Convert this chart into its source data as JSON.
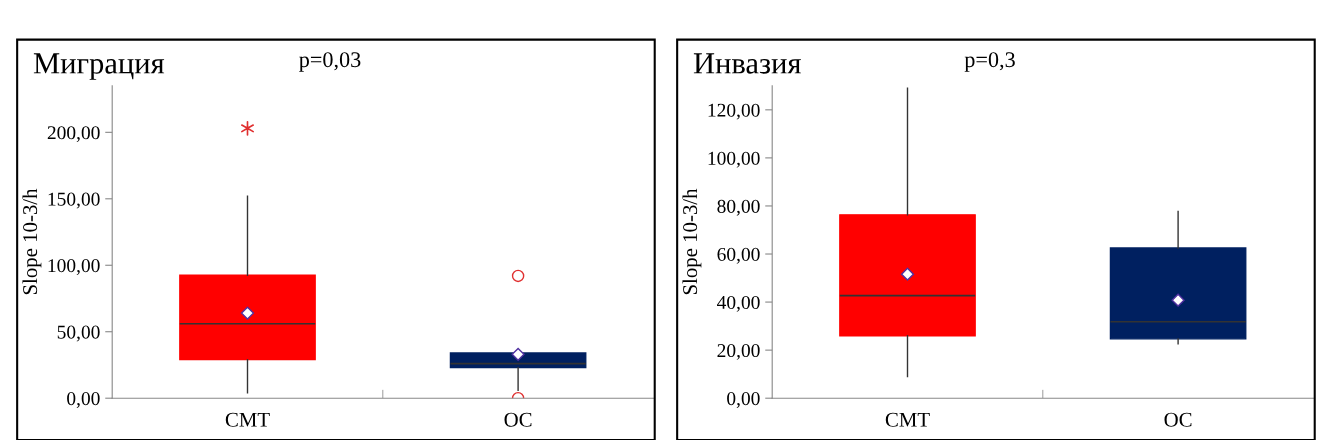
{
  "chart_data": [
    {
      "type": "box",
      "title": "Миграция",
      "subtitle": "p=0,03",
      "ylabel": "Slope 10-3/h",
      "categories": [
        "CMT",
        "OC"
      ],
      "ylim": [
        0,
        235
      ],
      "yticks": [
        {
          "value": 0,
          "label": "0,00"
        },
        {
          "value": 50,
          "label": "50,00"
        },
        {
          "value": 100,
          "label": "100,00"
        },
        {
          "value": 150,
          "label": "150,00"
        },
        {
          "value": 200,
          "label": "200,00"
        }
      ],
      "colors": [
        "#ff0000",
        "#002060"
      ],
      "boxes": [
        {
          "low": 4,
          "q1": 29,
          "median": 56,
          "q3": 92.5,
          "high": 152,
          "mean": 64
        },
        {
          "low": 6,
          "q1": 23,
          "median": 26,
          "q3": 34,
          "high": 35,
          "mean": 33,
          "outliers": [
            92,
            0
          ]
        }
      ],
      "series": [
        {
          "type": "scatter",
          "x": [
            "CMT"
          ],
          "values": [
            203
          ],
          "color": "#e03030",
          "marker": "cross"
        }
      ],
      "grid": false,
      "legend": false
    },
    {
      "type": "box",
      "title": "Инвазия",
      "subtitle": "p=0,3",
      "ylabel": "Slope 10-3/h",
      "categories": [
        "CMT",
        "OC"
      ],
      "ylim": [
        0,
        130
      ],
      "yticks": [
        {
          "value": 0,
          "label": "0,00"
        },
        {
          "value": 20,
          "label": "20,00"
        },
        {
          "value": 40,
          "label": "40,00"
        },
        {
          "value": 60,
          "label": "60,00"
        },
        {
          "value": 80,
          "label": "80,00"
        },
        {
          "value": 100,
          "label": "100,00"
        },
        {
          "value": 120,
          "label": "120,00"
        }
      ],
      "colors": [
        "#ff0000",
        "#002060"
      ],
      "boxes": [
        {
          "low": 9,
          "q1": 26,
          "median": 42.7,
          "q3": 76.3,
          "high": 129,
          "mean": 51.6
        },
        {
          "low": 22.6,
          "q1": 24.7,
          "median": 31.8,
          "q3": 62.5,
          "high": 77.7,
          "mean": 40.8
        }
      ],
      "grid": false,
      "legend": false
    }
  ]
}
